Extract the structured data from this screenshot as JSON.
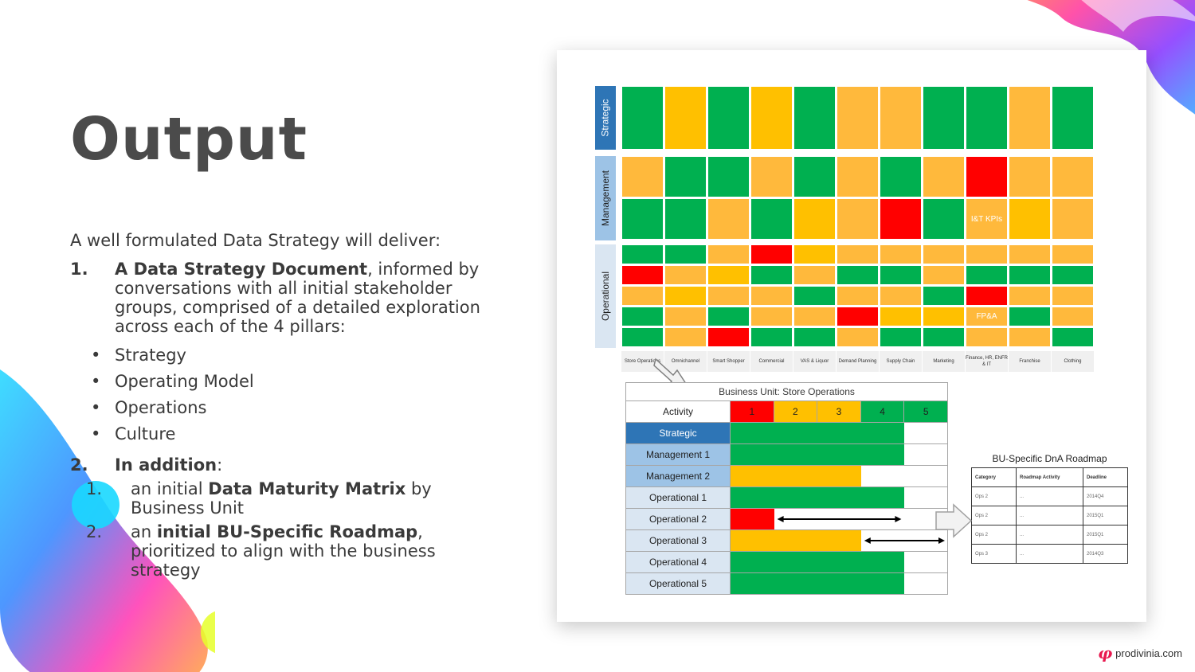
{
  "title": "Output",
  "intro": "A well formulated Data Strategy will deliver:",
  "items": [
    {
      "num": "1.",
      "bold": "A Data Strategy Document",
      "rest": ", informed by conversations with all initial stakeholder groups, comprised of a detailed exploration across each of the 4 pillars:"
    },
    {
      "num": "2.",
      "bold": "In addition",
      "rest": ":"
    }
  ],
  "pillars": [
    "Strategy",
    "Operating Model",
    "Operations",
    "Culture"
  ],
  "subitems": [
    {
      "num": "1.",
      "pre": "an initial ",
      "bold": "Data Maturity Matrix",
      "post": " by Business Unit"
    },
    {
      "num": "2.",
      "pre": "an ",
      "bold": "initial BU-Specific Roadmap",
      "post": ", prioritized to align with the business strategy"
    }
  ],
  "matrix": {
    "labels": {
      "strategic": "Strategic",
      "management": "Management",
      "operational": "Operational"
    },
    "cell_labels": {
      "ikt": "I&T KPIs",
      "fpa": "FP&A"
    },
    "business_units": [
      "Store Operations",
      "Omnichannel",
      "Smart Shopper",
      "Commercial",
      "VAS & Liquor",
      "Demand Planning",
      "Supply Chain",
      "Marketing",
      "Finance, HR, ENFR & IT",
      "Franchise",
      "Clothing"
    ]
  },
  "bu_table": {
    "title": "Business Unit: Store Operations",
    "activity_label": "Activity",
    "levels": [
      "1",
      "2",
      "3",
      "4",
      "5"
    ],
    "rows": [
      "Strategic",
      "Management 1",
      "Management 2",
      "Operational 1",
      "Operational 2",
      "Operational 3",
      "Operational 4",
      "Operational 5"
    ],
    "row_levels": [
      4,
      4,
      3,
      4,
      1,
      3,
      4,
      4
    ],
    "row_targets": [
      null,
      null,
      null,
      null,
      4,
      5,
      null,
      null
    ]
  },
  "roadmap": {
    "title": "BU-Specific DnA Roadmap",
    "headers": [
      "Category",
      "Roadmap Activity",
      "Deadline"
    ],
    "rows": [
      [
        "Ops 2",
        "...",
        "2014Q4"
      ],
      [
        "Ops 2",
        "...",
        "2015Q1"
      ],
      [
        "Ops 2",
        "...",
        "2015Q1"
      ],
      [
        "Ops 3",
        "...",
        "2014Q3"
      ]
    ]
  },
  "brand": "prodivinia.com",
  "colors": {
    "green": "#00b050",
    "yellow": "#ffc000",
    "orange": "#ffb93c",
    "red": "#ff0000",
    "blue": "#2e75b6"
  }
}
